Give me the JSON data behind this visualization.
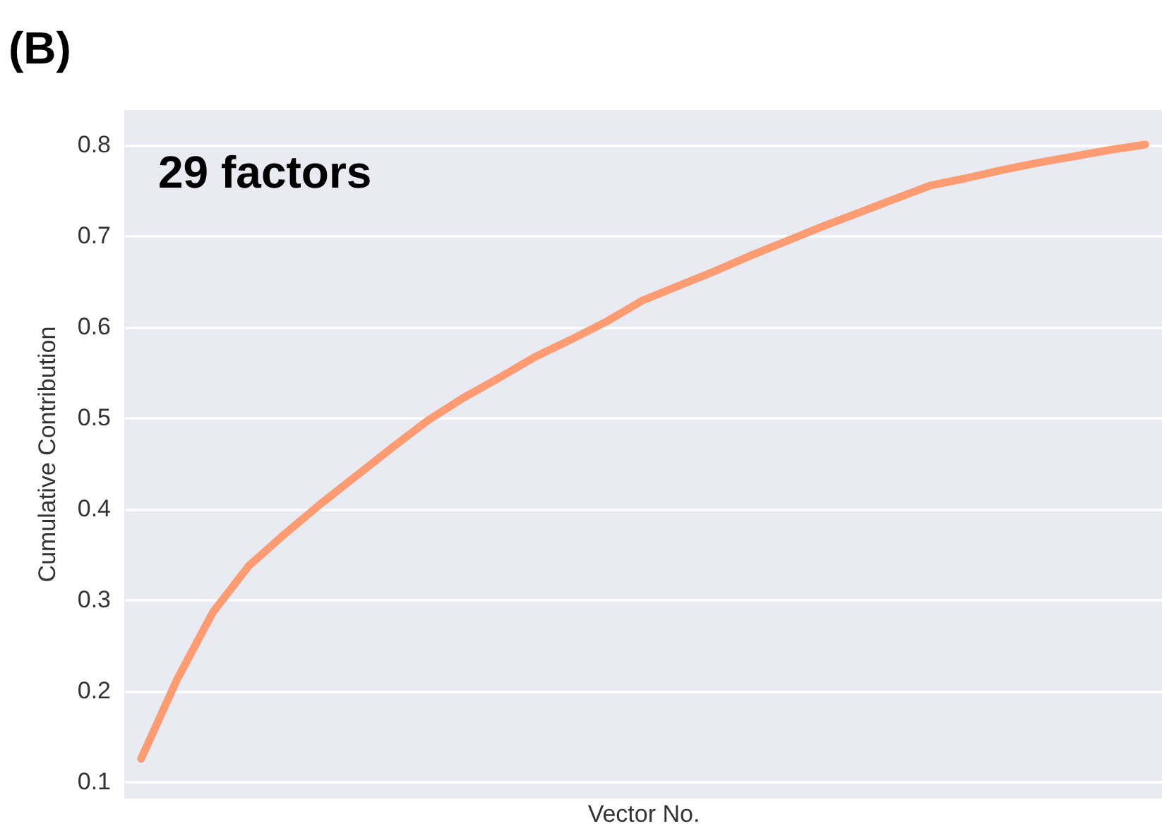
{
  "chart_data": {
    "type": "line",
    "title": "(B)",
    "xlabel": "Vector No.",
    "ylabel": "Cumulative Contribution",
    "annotations": [
      "29 factors"
    ],
    "categories": [
      null,
      null,
      null,
      null,
      null,
      null,
      null,
      null,
      null,
      null,
      null,
      null,
      null,
      null,
      null,
      null,
      null,
      null,
      null,
      null,
      null,
      null,
      null,
      null,
      null,
      null,
      null,
      null,
      null
    ],
    "series": [
      {
        "color": "#fd9b72",
        "values": [
          0.125,
          0.212,
          0.286,
          0.337,
          0.372,
          0.405,
          0.436,
          0.467,
          0.497,
          0.522,
          0.544,
          0.567,
          0.586,
          0.606,
          0.629,
          0.645,
          0.661,
          0.678,
          0.694,
          0.71,
          0.725,
          0.74,
          0.755,
          0.763,
          0.772,
          0.78,
          0.787,
          0.794,
          0.8
        ]
      }
    ],
    "ylim": [
      0.083,
      0.838
    ],
    "yticks": [
      0.1,
      0.2,
      0.3,
      0.4,
      0.5,
      0.6,
      0.7,
      0.8
    ],
    "grid": "y",
    "tick_labels": "y"
  }
}
